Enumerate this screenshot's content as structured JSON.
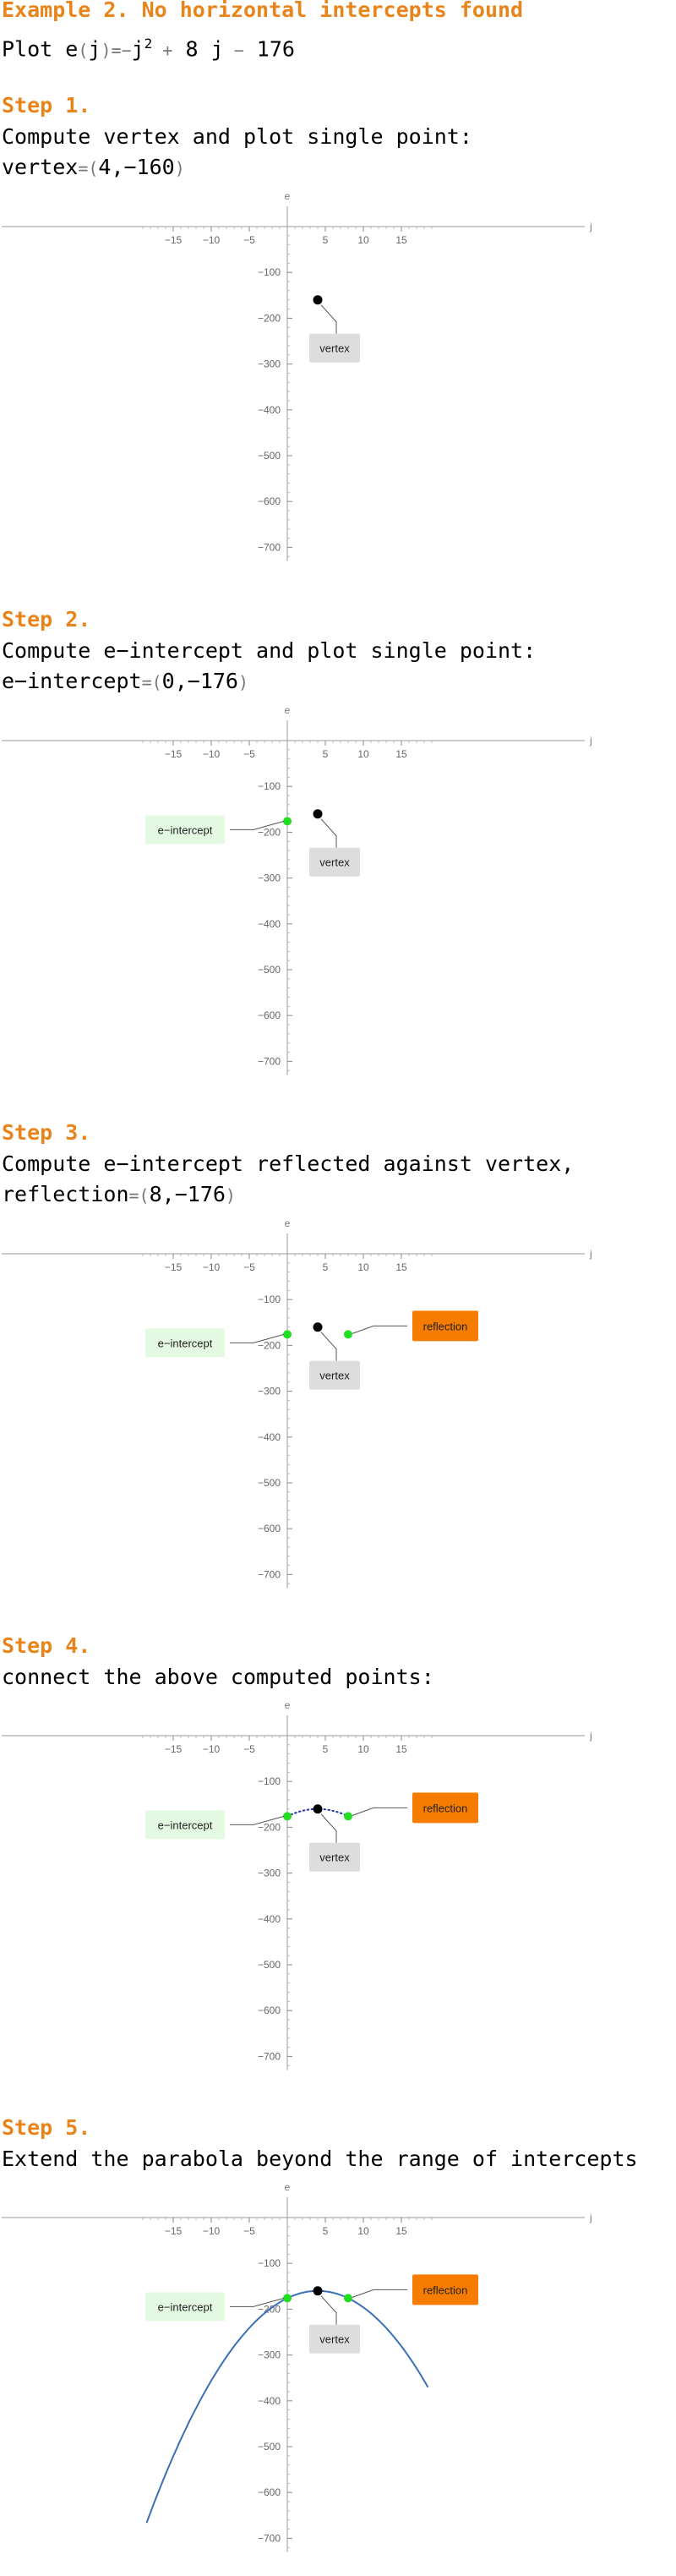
{
  "title": "Example 2. No horizontal intercepts found",
  "plot_line": {
    "prefix": "Plot ",
    "fname": "e",
    "var": "j",
    "eq": "=",
    "minus": "−",
    "exp": "2",
    "plus": "+",
    "coef": "8",
    "const": "176"
  },
  "steps": [
    {
      "heading": "Step 1.",
      "lines": [
        "Compute vertex and plot single point:"
      ],
      "value_name": "vertex",
      "value": "4,−160"
    },
    {
      "heading": "Step 2.",
      "lines": [
        "Compute e−intercept and plot single point:"
      ],
      "value_name": "e−intercept",
      "value": "0,−176"
    },
    {
      "heading": "Step 3.",
      "lines": [
        "Compute e−intercept reflected against vertex,"
      ],
      "value_name": "reflection",
      "value": "8,−176"
    },
    {
      "heading": "Step 4.",
      "lines": [
        "connect the above computed points:"
      ]
    },
    {
      "heading": "Step 5.",
      "lines": [
        "Extend the parabola beyond the range of intercepts"
      ]
    }
  ],
  "labels": {
    "vertex": "vertex",
    "intercept": "e−intercept",
    "reflection": "reflection"
  },
  "colors": {
    "heading": "#e8841a",
    "vertex": "#000000",
    "intercept_point": "#22dd22",
    "intercept_box": "#e4f9e1",
    "vertex_box": "#dddddd",
    "reflection_box": "#f57c00",
    "curve": "#3b6fb6",
    "dotted": "#2233aa"
  },
  "chart_data": [
    {
      "type": "scatter",
      "step": 1,
      "xlabel": "j",
      "ylabel": "e",
      "xlim": [
        -19,
        19
      ],
      "ylim": [
        -730,
        0
      ],
      "xticks": [
        -15,
        -10,
        -5,
        5,
        10,
        15
      ],
      "yticks": [
        -100,
        -200,
        -300,
        -400,
        -500,
        -600,
        -700
      ],
      "points": [
        {
          "name": "vertex",
          "x": 4,
          "y": -160
        }
      ]
    },
    {
      "type": "scatter",
      "step": 2,
      "xlabel": "j",
      "ylabel": "e",
      "xlim": [
        -19,
        19
      ],
      "ylim": [
        -730,
        0
      ],
      "xticks": [
        -15,
        -10,
        -5,
        5,
        10,
        15
      ],
      "yticks": [
        -100,
        -200,
        -300,
        -400,
        -500,
        -600,
        -700
      ],
      "points": [
        {
          "name": "vertex",
          "x": 4,
          "y": -160
        },
        {
          "name": "e−intercept",
          "x": 0,
          "y": -176
        }
      ]
    },
    {
      "type": "scatter",
      "step": 3,
      "xlabel": "j",
      "ylabel": "e",
      "xlim": [
        -19,
        19
      ],
      "ylim": [
        -730,
        0
      ],
      "xticks": [
        -15,
        -10,
        -5,
        5,
        10,
        15
      ],
      "yticks": [
        -100,
        -200,
        -300,
        -400,
        -500,
        -600,
        -700
      ],
      "points": [
        {
          "name": "vertex",
          "x": 4,
          "y": -160
        },
        {
          "name": "e−intercept",
          "x": 0,
          "y": -176
        },
        {
          "name": "reflection",
          "x": 8,
          "y": -176
        }
      ]
    },
    {
      "type": "line",
      "step": 4,
      "xlabel": "j",
      "ylabel": "e",
      "xlim": [
        -19,
        19
      ],
      "ylim": [
        -730,
        0
      ],
      "xticks": [
        -15,
        -10,
        -5,
        5,
        10,
        15
      ],
      "yticks": [
        -100,
        -200,
        -300,
        -400,
        -500,
        -600,
        -700
      ],
      "points": [
        {
          "name": "vertex",
          "x": 4,
          "y": -160
        },
        {
          "name": "e−intercept",
          "x": 0,
          "y": -176
        },
        {
          "name": "reflection",
          "x": 8,
          "y": -176
        }
      ],
      "curve": {
        "style": "dotted",
        "range": [
          0,
          8
        ]
      }
    },
    {
      "type": "line",
      "step": 5,
      "xlabel": "j",
      "ylabel": "e",
      "xlim": [
        -19,
        19
      ],
      "ylim": [
        -730,
        0
      ],
      "xticks": [
        -15,
        -10,
        -5,
        5,
        10,
        15
      ],
      "yticks": [
        -100,
        -200,
        -300,
        -400,
        -500,
        -600,
        -700
      ],
      "points": [
        {
          "name": "vertex",
          "x": 4,
          "y": -160
        },
        {
          "name": "e−intercept",
          "x": 0,
          "y": -176
        },
        {
          "name": "reflection",
          "x": 8,
          "y": -176
        }
      ],
      "curve": {
        "style": "solid",
        "range": [
          -18.5,
          18.5
        ]
      }
    }
  ]
}
